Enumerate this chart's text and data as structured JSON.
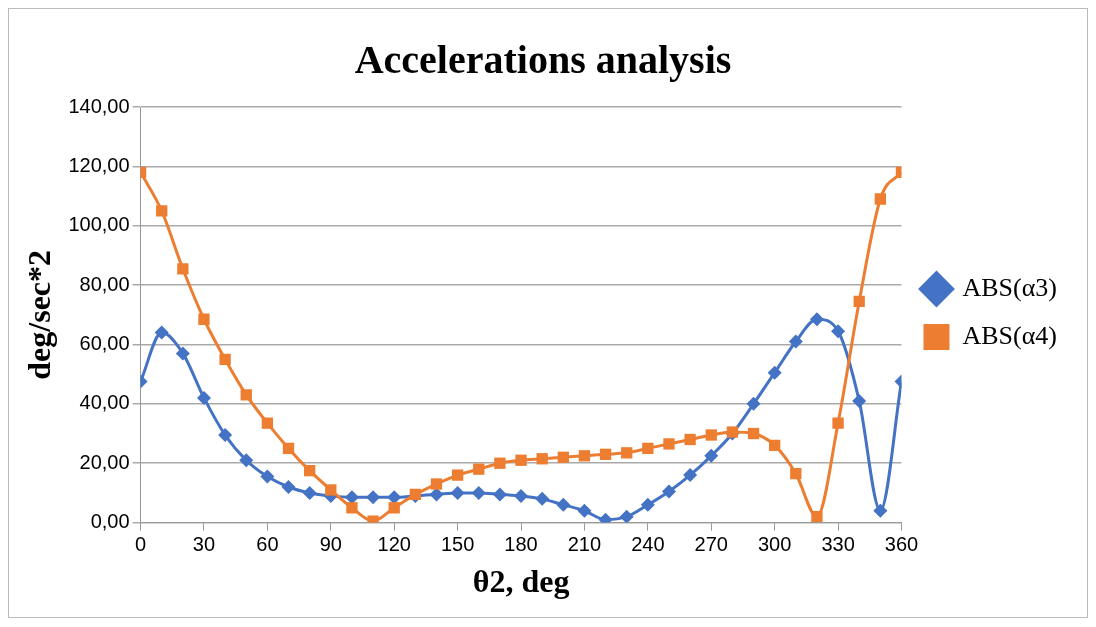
{
  "chart_data": {
    "type": "line",
    "title": "Accelerations analysis",
    "xlabel": "θ2, deg",
    "ylabel": "deg/sec*2",
    "x": [
      0,
      10,
      20,
      30,
      40,
      50,
      60,
      70,
      80,
      90,
      100,
      110,
      120,
      130,
      140,
      150,
      160,
      170,
      180,
      190,
      200,
      210,
      220,
      230,
      240,
      250,
      260,
      270,
      280,
      290,
      300,
      310,
      320,
      330,
      340,
      350,
      360
    ],
    "series": [
      {
        "name": "ABS(α3)",
        "color": "#4472c4",
        "marker": "diamond",
        "values": [
          47.5,
          64,
          57,
          42,
          29.5,
          21,
          15.5,
          12,
          10,
          9,
          8.5,
          8.5,
          8.5,
          9,
          9.5,
          10,
          10,
          9.5,
          9,
          8,
          6,
          4,
          1,
          2,
          6,
          10.5,
          16,
          22.5,
          30,
          40,
          50.5,
          61,
          68.5,
          64.5,
          41,
          4,
          47.5
        ]
      },
      {
        "name": "ABS(α4)",
        "color": "#ed7d31",
        "marker": "square",
        "values": [
          118,
          105,
          85.5,
          68.5,
          55,
          43,
          33.5,
          25,
          17.5,
          11,
          5,
          0.5,
          5,
          9.5,
          13,
          16,
          18,
          20,
          21,
          21.5,
          22,
          22.5,
          23,
          23.5,
          25,
          26.5,
          28,
          29.5,
          30.5,
          30,
          26,
          16.5,
          2,
          33.5,
          74.5,
          109,
          118
        ]
      }
    ],
    "xlim": [
      0,
      360
    ],
    "xticks": [
      0,
      30,
      60,
      90,
      120,
      150,
      180,
      210,
      240,
      270,
      300,
      330,
      360
    ],
    "ylim": [
      0,
      140
    ],
    "yticks": [
      {
        "value": 0,
        "label": "0,00"
      },
      {
        "value": 20,
        "label": "20,00"
      },
      {
        "value": 40,
        "label": "40,00"
      },
      {
        "value": 60,
        "label": "60,00"
      },
      {
        "value": 80,
        "label": "80,00"
      },
      {
        "value": 100,
        "label": "100,00"
      },
      {
        "value": 120,
        "label": "120,00"
      },
      {
        "value": 140,
        "label": "140,00"
      }
    ],
    "grid": "y",
    "legend": "right",
    "line_style": "solid"
  }
}
